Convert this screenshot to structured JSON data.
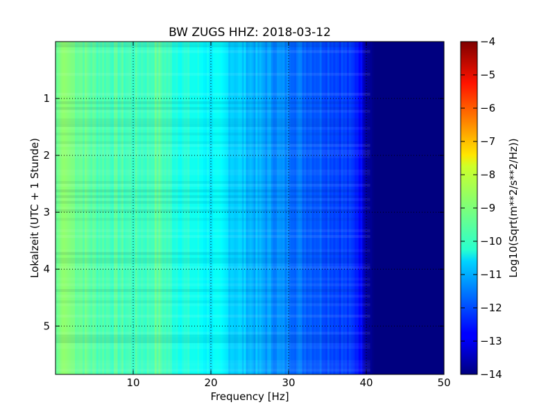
{
  "chart_data": {
    "type": "heatmap",
    "title": "BW ZUGS HHZ: 2018-03-12",
    "xlabel": "Frequency [Hz]",
    "ylabel": "Lokalzeit (UTC + 1 Stunde)",
    "xlim": [
      0,
      50
    ],
    "ylim": [
      5.85,
      0
    ],
    "x_ticks": [
      10,
      20,
      30,
      40,
      50
    ],
    "y_ticks": [
      1,
      2,
      3,
      4,
      5
    ],
    "grid": true,
    "colormap": "jet",
    "colorbar": {
      "label": "Log10(Sqrt(m**2/s**2/Hz))",
      "range": [
        -14,
        -4
      ],
      "ticks": [
        -4,
        -5,
        -6,
        -7,
        -8,
        -9,
        -10,
        -11,
        -12,
        -13,
        -14
      ]
    },
    "mean_spectrum": {
      "frequency_hz": [
        0,
        1,
        2,
        5,
        8,
        10,
        12,
        13,
        15,
        18,
        20,
        22,
        25,
        28,
        30,
        32,
        35,
        37,
        38,
        39,
        40,
        41,
        42,
        45,
        50
      ],
      "value": [
        -9.3,
        -8.8,
        -9.0,
        -9.4,
        -9.5,
        -9.6,
        -9.6,
        -9.3,
        -9.8,
        -10.1,
        -10.3,
        -10.5,
        -10.9,
        -11.3,
        -11.5,
        -11.7,
        -11.9,
        -12.1,
        -12.3,
        -12.4,
        -13.5,
        -14,
        -14,
        -14,
        -14
      ]
    }
  }
}
